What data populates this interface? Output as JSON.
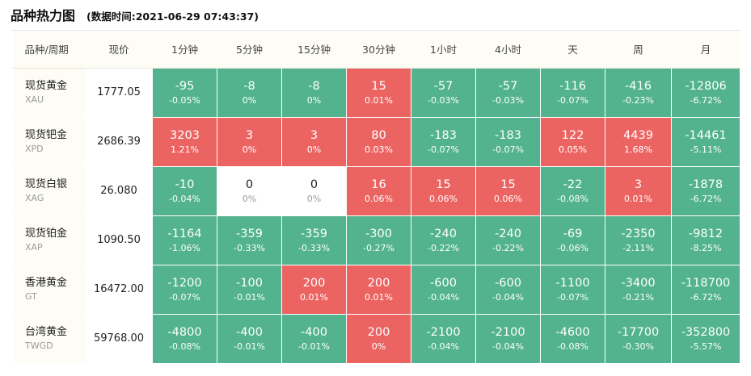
{
  "header": {
    "title": "品种热力图",
    "timestamp": "(数据时间:2021-06-29 07:43:37)"
  },
  "columns": [
    "品种/周期",
    "现价",
    "1分钟",
    "5分钟",
    "15分钟",
    "30分钟",
    "1小时",
    "4小时",
    "天",
    "周",
    "月"
  ],
  "colors": {
    "up": "#ec6462",
    "down": "#52b38e",
    "flat": "#ffffff"
  },
  "rows": [
    {
      "name": "现货黄金",
      "symbol": "XAU",
      "price": "1777.05",
      "cells": [
        {
          "v": "-95",
          "p": "-0.05%",
          "dir": "down"
        },
        {
          "v": "-8",
          "p": "0%",
          "dir": "down"
        },
        {
          "v": "-8",
          "p": "0%",
          "dir": "down"
        },
        {
          "v": "15",
          "p": "0.01%",
          "dir": "up"
        },
        {
          "v": "-57",
          "p": "-0.03%",
          "dir": "down"
        },
        {
          "v": "-57",
          "p": "-0.03%",
          "dir": "down"
        },
        {
          "v": "-116",
          "p": "-0.07%",
          "dir": "down"
        },
        {
          "v": "-416",
          "p": "-0.23%",
          "dir": "down"
        },
        {
          "v": "-12806",
          "p": "-6.72%",
          "dir": "down"
        }
      ]
    },
    {
      "name": "现货钯金",
      "symbol": "XPD",
      "price": "2686.39",
      "cells": [
        {
          "v": "3203",
          "p": "1.21%",
          "dir": "up"
        },
        {
          "v": "3",
          "p": "0%",
          "dir": "up"
        },
        {
          "v": "3",
          "p": "0%",
          "dir": "up"
        },
        {
          "v": "80",
          "p": "0.03%",
          "dir": "up"
        },
        {
          "v": "-183",
          "p": "-0.07%",
          "dir": "down"
        },
        {
          "v": "-183",
          "p": "-0.07%",
          "dir": "down"
        },
        {
          "v": "122",
          "p": "0.05%",
          "dir": "up"
        },
        {
          "v": "4439",
          "p": "1.68%",
          "dir": "up"
        },
        {
          "v": "-14461",
          "p": "-5.11%",
          "dir": "down"
        }
      ]
    },
    {
      "name": "现货白银",
      "symbol": "XAG",
      "price": "26.080",
      "cells": [
        {
          "v": "-10",
          "p": "-0.04%",
          "dir": "down"
        },
        {
          "v": "0",
          "p": "0%",
          "dir": "flat"
        },
        {
          "v": "0",
          "p": "0%",
          "dir": "flat"
        },
        {
          "v": "16",
          "p": "0.06%",
          "dir": "up"
        },
        {
          "v": "15",
          "p": "0.06%",
          "dir": "up"
        },
        {
          "v": "15",
          "p": "0.06%",
          "dir": "up"
        },
        {
          "v": "-22",
          "p": "-0.08%",
          "dir": "down"
        },
        {
          "v": "3",
          "p": "0.01%",
          "dir": "up"
        },
        {
          "v": "-1878",
          "p": "-6.72%",
          "dir": "down"
        }
      ]
    },
    {
      "name": "现货铂金",
      "symbol": "XAP",
      "price": "1090.50",
      "cells": [
        {
          "v": "-1164",
          "p": "-1.06%",
          "dir": "down"
        },
        {
          "v": "-359",
          "p": "-0.33%",
          "dir": "down"
        },
        {
          "v": "-359",
          "p": "-0.33%",
          "dir": "down"
        },
        {
          "v": "-300",
          "p": "-0.27%",
          "dir": "down"
        },
        {
          "v": "-240",
          "p": "-0.22%",
          "dir": "down"
        },
        {
          "v": "-240",
          "p": "-0.22%",
          "dir": "down"
        },
        {
          "v": "-69",
          "p": "-0.06%",
          "dir": "down"
        },
        {
          "v": "-2350",
          "p": "-2.11%",
          "dir": "down"
        },
        {
          "v": "-9812",
          "p": "-8.25%",
          "dir": "down"
        }
      ]
    },
    {
      "name": "香港黄金",
      "symbol": "GT",
      "price": "16472.00",
      "cells": [
        {
          "v": "-1200",
          "p": "-0.07%",
          "dir": "down"
        },
        {
          "v": "-100",
          "p": "-0.01%",
          "dir": "down"
        },
        {
          "v": "200",
          "p": "0.01%",
          "dir": "up"
        },
        {
          "v": "200",
          "p": "0.01%",
          "dir": "up"
        },
        {
          "v": "-600",
          "p": "-0.04%",
          "dir": "down"
        },
        {
          "v": "-600",
          "p": "-0.04%",
          "dir": "down"
        },
        {
          "v": "-1100",
          "p": "-0.07%",
          "dir": "down"
        },
        {
          "v": "-3400",
          "p": "-0.21%",
          "dir": "down"
        },
        {
          "v": "-118700",
          "p": "-6.72%",
          "dir": "down"
        }
      ]
    },
    {
      "name": "台湾黄金",
      "symbol": "TWGD",
      "price": "59768.00",
      "cells": [
        {
          "v": "-4800",
          "p": "-0.08%",
          "dir": "down"
        },
        {
          "v": "-400",
          "p": "-0.01%",
          "dir": "down"
        },
        {
          "v": "-400",
          "p": "-0.01%",
          "dir": "down"
        },
        {
          "v": "200",
          "p": "0%",
          "dir": "up"
        },
        {
          "v": "-2100",
          "p": "-0.04%",
          "dir": "down"
        },
        {
          "v": "-2100",
          "p": "-0.04%",
          "dir": "down"
        },
        {
          "v": "-4600",
          "p": "-0.08%",
          "dir": "down"
        },
        {
          "v": "-17700",
          "p": "-0.30%",
          "dir": "down"
        },
        {
          "v": "-352800",
          "p": "-5.57%",
          "dir": "down"
        }
      ]
    }
  ]
}
